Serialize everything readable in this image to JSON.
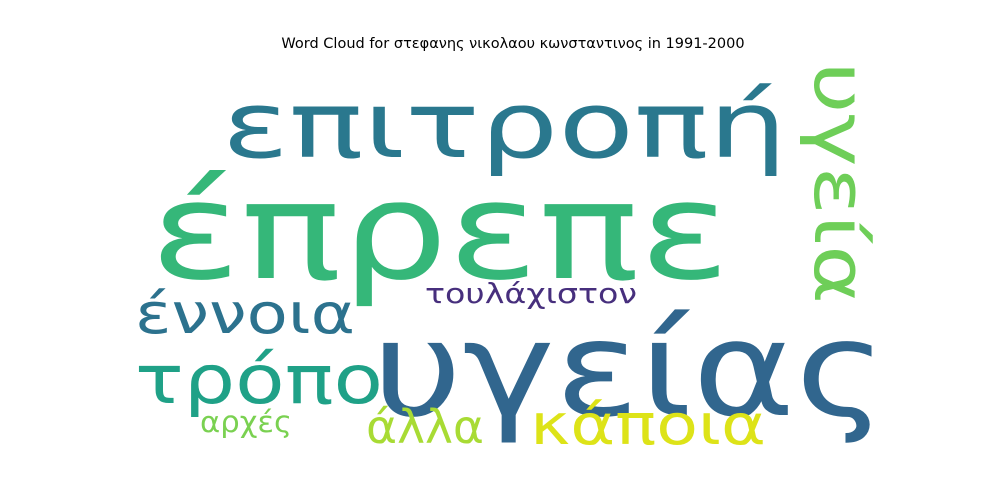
{
  "chart_data": {
    "type": "wordcloud",
    "title": "Word Cloud for στεφανης νικολαου κωνσταντινος in 1991-2000",
    "words": [
      {
        "text": "έπρεπε",
        "color": "#35b779"
      },
      {
        "text": "επιτροπή",
        "color": "#2a788e"
      },
      {
        "text": "υγείας",
        "color": "#31668e"
      },
      {
        "text": "υγεία",
        "color": "#6ece58"
      },
      {
        "text": "τρόπο",
        "color": "#1fa187"
      },
      {
        "text": "έννοια",
        "color": "#2c728e"
      },
      {
        "text": "κάποια",
        "color": "#dde318"
      },
      {
        "text": "τουλάχιστον",
        "color": "#472f7d"
      },
      {
        "text": "άλλα",
        "color": "#a8db34"
      },
      {
        "text": "αρχές",
        "color": "#7ad151"
      }
    ]
  }
}
